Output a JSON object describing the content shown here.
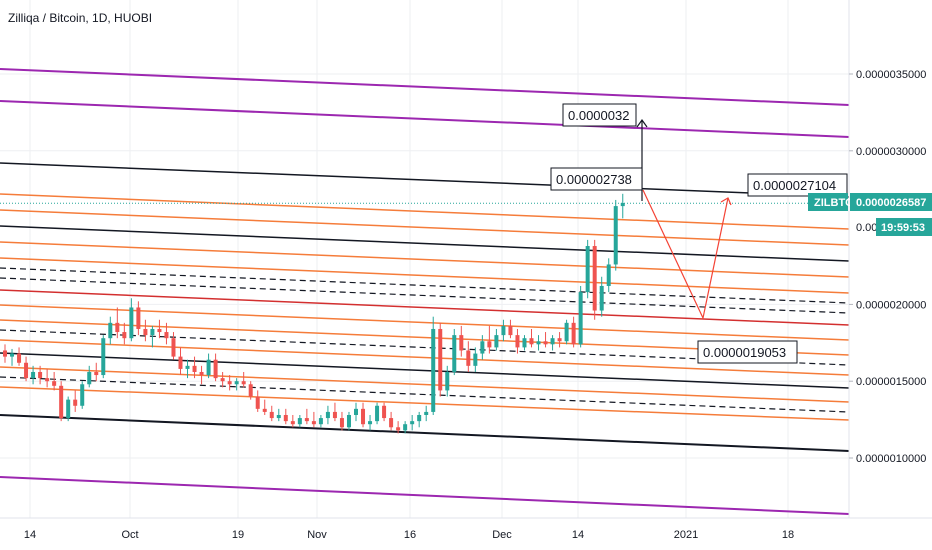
{
  "header": {
    "title": "Zilliqa / Bitcoin, 1D, HUOBI"
  },
  "colors": {
    "up": "#26a69a",
    "down": "#ef5350",
    "orange": "#f57c3a",
    "purple": "#9c27b0",
    "black": "#131722",
    "red": "#d32f2f",
    "badge": "#26a69a",
    "current_line": "#26a69a",
    "grid": "#eeeff2"
  },
  "badges": {
    "symbol": "ZILBTC",
    "price": "0.0000026587",
    "countdown": "19:59:53"
  },
  "price_axis_partial_label": "0.00",
  "annotations": {
    "target_top": "0.0000032",
    "peak": "0.000002738",
    "right_target": "0.0000027104",
    "low_target": "0.0000019053"
  },
  "chart_data": {
    "type": "candlestick",
    "title": "Zilliqa / Bitcoin, 1D, HUOBI",
    "symbol": "ZILBTC",
    "exchange": "HUOBI",
    "timeframe": "1D",
    "x_ticks": [
      "14",
      "Oct",
      "19",
      "Nov",
      "16",
      "Dec",
      "14",
      "2021",
      "18"
    ],
    "y_ticks": [
      "0.0000035000",
      "0.0000030000",
      "0.0000020000",
      "0.0000015000",
      "0.0000010000"
    ],
    "ylim": [
      6e-07,
      3.95e-06
    ],
    "last_price": 2.6587e-06,
    "ohlc": [
      [
        1.7,
        1.74,
        1.62,
        1.66
      ],
      [
        1.66,
        1.71,
        1.6,
        1.68
      ],
      [
        1.68,
        1.72,
        1.6,
        1.62
      ],
      [
        1.62,
        1.66,
        1.5,
        1.52
      ],
      [
        1.52,
        1.6,
        1.48,
        1.56
      ],
      [
        1.56,
        1.6,
        1.48,
        1.52
      ],
      [
        1.52,
        1.58,
        1.46,
        1.5
      ],
      [
        1.5,
        1.56,
        1.44,
        1.47
      ],
      [
        1.47,
        1.5,
        1.24,
        1.26
      ],
      [
        1.26,
        1.4,
        1.24,
        1.38
      ],
      [
        1.38,
        1.44,
        1.3,
        1.34
      ],
      [
        1.34,
        1.5,
        1.32,
        1.48
      ],
      [
        1.48,
        1.6,
        1.46,
        1.56
      ],
      [
        1.56,
        1.62,
        1.5,
        1.54
      ],
      [
        1.54,
        1.8,
        1.52,
        1.78
      ],
      [
        1.78,
        1.92,
        1.74,
        1.88
      ],
      [
        1.88,
        1.98,
        1.78,
        1.82
      ],
      [
        1.82,
        1.88,
        1.74,
        1.78
      ],
      [
        1.78,
        2.04,
        1.76,
        1.98
      ],
      [
        1.98,
        2.02,
        1.8,
        1.84
      ],
      [
        1.84,
        1.9,
        1.76,
        1.8
      ],
      [
        1.8,
        1.86,
        1.72,
        1.84
      ],
      [
        1.84,
        1.9,
        1.78,
        1.82
      ],
      [
        1.82,
        1.88,
        1.74,
        1.78
      ],
      [
        1.78,
        1.82,
        1.64,
        1.66
      ],
      [
        1.66,
        1.72,
        1.54,
        1.58
      ],
      [
        1.58,
        1.64,
        1.52,
        1.6
      ],
      [
        1.6,
        1.66,
        1.52,
        1.56
      ],
      [
        1.56,
        1.6,
        1.48,
        1.54
      ],
      [
        1.54,
        1.68,
        1.52,
        1.64
      ],
      [
        1.64,
        1.68,
        1.5,
        1.52
      ],
      [
        1.52,
        1.56,
        1.46,
        1.5
      ],
      [
        1.5,
        1.54,
        1.44,
        1.48
      ],
      [
        1.48,
        1.52,
        1.44,
        1.5
      ],
      [
        1.5,
        1.56,
        1.46,
        1.48
      ],
      [
        1.48,
        1.5,
        1.38,
        1.4
      ],
      [
        1.4,
        1.44,
        1.3,
        1.32
      ],
      [
        1.32,
        1.38,
        1.28,
        1.3
      ],
      [
        1.3,
        1.34,
        1.24,
        1.26
      ],
      [
        1.26,
        1.32,
        1.24,
        1.28
      ],
      [
        1.28,
        1.32,
        1.22,
        1.24
      ],
      [
        1.24,
        1.28,
        1.2,
        1.22
      ],
      [
        1.22,
        1.28,
        1.2,
        1.26
      ],
      [
        1.26,
        1.32,
        1.22,
        1.24
      ],
      [
        1.24,
        1.3,
        1.2,
        1.22
      ],
      [
        1.22,
        1.28,
        1.2,
        1.26
      ],
      [
        1.26,
        1.34,
        1.22,
        1.3
      ],
      [
        1.3,
        1.36,
        1.24,
        1.26
      ],
      [
        1.26,
        1.3,
        1.18,
        1.2
      ],
      [
        1.2,
        1.3,
        1.18,
        1.28
      ],
      [
        1.28,
        1.36,
        1.24,
        1.32
      ],
      [
        1.32,
        1.36,
        1.2,
        1.22
      ],
      [
        1.22,
        1.28,
        1.18,
        1.24
      ],
      [
        1.24,
        1.36,
        1.22,
        1.34
      ],
      [
        1.34,
        1.36,
        1.24,
        1.26
      ],
      [
        1.26,
        1.3,
        1.18,
        1.2
      ],
      [
        1.2,
        1.24,
        1.16,
        1.18
      ],
      [
        1.18,
        1.24,
        1.16,
        1.22
      ],
      [
        1.22,
        1.28,
        1.18,
        1.24
      ],
      [
        1.24,
        1.3,
        1.2,
        1.28
      ],
      [
        1.28,
        1.34,
        1.24,
        1.3
      ],
      [
        1.3,
        1.92,
        1.28,
        1.84
      ],
      [
        1.84,
        1.88,
        1.4,
        1.44
      ],
      [
        1.44,
        1.6,
        1.4,
        1.56
      ],
      [
        1.56,
        1.84,
        1.54,
        1.8
      ],
      [
        1.8,
        1.86,
        1.66,
        1.7
      ],
      [
        1.7,
        1.76,
        1.56,
        1.6
      ],
      [
        1.6,
        1.72,
        1.56,
        1.68
      ],
      [
        1.68,
        1.8,
        1.64,
        1.76
      ],
      [
        1.76,
        1.86,
        1.68,
        1.72
      ],
      [
        1.72,
        1.84,
        1.7,
        1.8
      ],
      [
        1.8,
        1.9,
        1.76,
        1.86
      ],
      [
        1.86,
        1.9,
        1.78,
        1.8
      ],
      [
        1.8,
        1.84,
        1.68,
        1.72
      ],
      [
        1.72,
        1.8,
        1.7,
        1.78
      ],
      [
        1.78,
        1.84,
        1.72,
        1.74
      ],
      [
        1.74,
        1.8,
        1.7,
        1.76
      ],
      [
        1.76,
        1.82,
        1.72,
        1.74
      ],
      [
        1.74,
        1.8,
        1.7,
        1.78
      ],
      [
        1.78,
        1.82,
        1.72,
        1.76
      ],
      [
        1.76,
        1.9,
        1.74,
        1.88
      ],
      [
        1.88,
        1.92,
        1.72,
        1.74
      ],
      [
        1.74,
        2.12,
        1.72,
        2.08
      ],
      [
        2.08,
        2.42,
        2.04,
        2.38
      ],
      [
        2.38,
        2.42,
        1.9,
        1.96
      ],
      [
        1.96,
        2.18,
        1.92,
        2.12
      ],
      [
        2.12,
        2.3,
        2.08,
        2.26
      ],
      [
        2.26,
        2.68,
        2.22,
        2.64
      ],
      [
        2.64,
        2.72,
        2.56,
        2.66
      ]
    ]
  }
}
